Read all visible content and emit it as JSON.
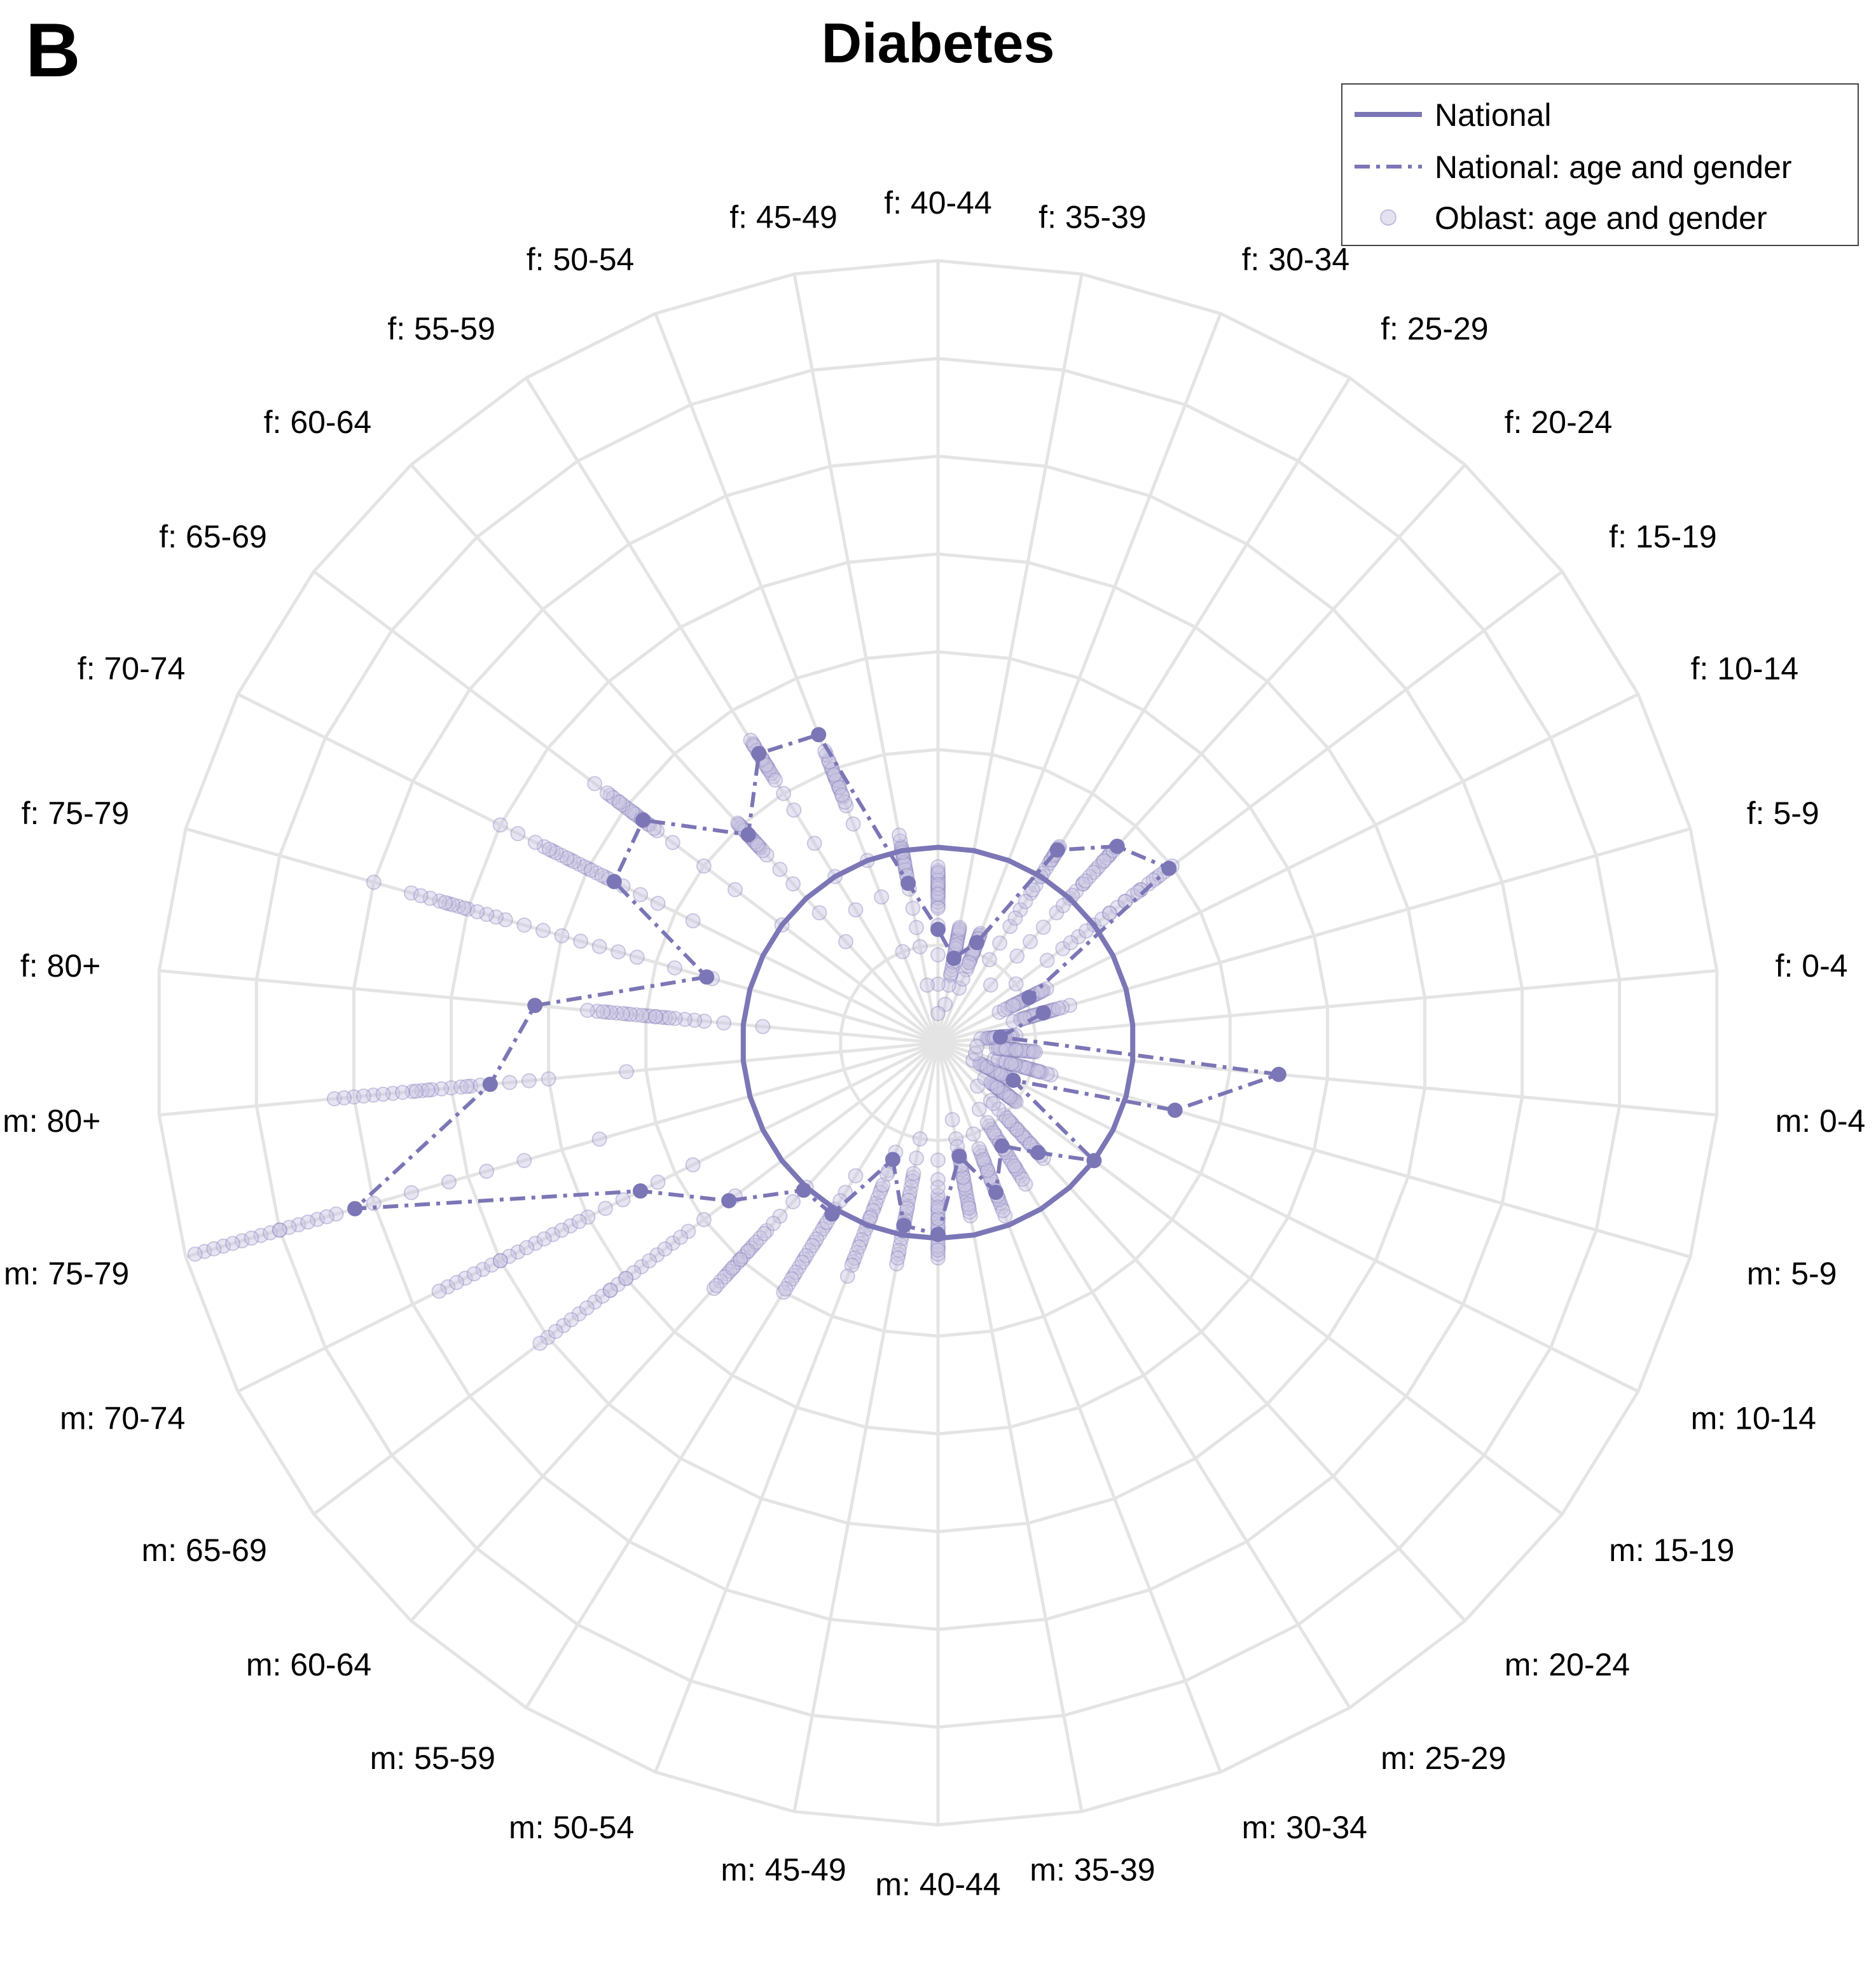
{
  "panel_letter": "B",
  "chart_data": {
    "type": "radar",
    "title": "Diabetes",
    "categories": [
      "f: 0-4",
      "f: 5-9",
      "f: 10-14",
      "f: 15-19",
      "f: 20-24",
      "f: 25-29",
      "f: 30-34",
      "f: 35-39",
      "f: 40-44",
      "f: 45-49",
      "f: 50-54",
      "f: 55-59",
      "f: 60-64",
      "f: 65-69",
      "f: 70-74",
      "f: 75-79",
      "f: 80+",
      "m: 80+",
      "m: 75-79",
      "m: 70-74",
      "m: 65-69",
      "m: 60-64",
      "m: 55-59",
      "m: 50-54",
      "m: 45-49",
      "m: 40-44",
      "m: 35-39",
      "m: 30-34",
      "m: 25-29",
      "m: 20-24",
      "m: 15-19",
      "m: 10-14",
      "m: 5-9",
      "m: 0-4"
    ],
    "rlim": [
      0,
      4
    ],
    "grid": true,
    "legend_position": "top-right",
    "colors": {
      "series": "#7b76b5",
      "grid": "#e4e4e4",
      "oblast_fill": "#c9c6e3"
    },
    "series": [
      {
        "name": "National",
        "style": "solid",
        "values": [
          1,
          1,
          1,
          1,
          1,
          1,
          1,
          1,
          1,
          1,
          1,
          1,
          1,
          1,
          1,
          1,
          1,
          1,
          1,
          1,
          1,
          1,
          1,
          1,
          1,
          1,
          1,
          1,
          1,
          1,
          1,
          1,
          1,
          1
        ]
      },
      {
        "name": "National: age and gender",
        "style": "dashdot",
        "values": [
          0.32,
          0.56,
          0.52,
          1.48,
          1.36,
          1.16,
          0.55,
          0.44,
          0.58,
          0.83,
          1.69,
          1.74,
          1.44,
          1.89,
          1.85,
          1.23,
          2.07,
          2.3,
          3.1,
          1.7,
          1.34,
          1.02,
          1.03,
          0.64,
          0.95,
          0.98,
          0.59,
          0.82,
          0.62,
          0.76,
          1.0,
          0.43,
          1.26,
          1.75
        ]
      }
    ],
    "oblast_points": {
      "name": "Oblast: age and gender",
      "values": [
        [
          0.3,
          0.28,
          0.36,
          0.25,
          0.4,
          0.32,
          0.22,
          0.38,
          0.34,
          0.3,
          0.27,
          0.33,
          0.29,
          0.35,
          0.31,
          0.26,
          0.37,
          0.3,
          0.32,
          0.28,
          0.34,
          0.3,
          0.33,
          0.29
        ],
        [
          0.45,
          0.6,
          0.55,
          0.4,
          0.7,
          0.5,
          0.48,
          0.58,
          0.52,
          0.62,
          0.44,
          0.57,
          0.5,
          0.66,
          0.54,
          0.47,
          0.59,
          0.53,
          0.49,
          0.61,
          0.56,
          0.51,
          0.64,
          0.46
        ],
        [
          0.35,
          0.55,
          0.5,
          0.45,
          0.62,
          0.48,
          0.4,
          0.58,
          0.52,
          0.56,
          0.42,
          0.6,
          0.47,
          0.53,
          0.44,
          0.57,
          0.5,
          0.38,
          0.54,
          0.49,
          0.51,
          0.46,
          0.59,
          0.43
        ],
        [
          0.5,
          0.9,
          1.2,
          1.5,
          1.45,
          1.1,
          1.3,
          0.8,
          1.0,
          1.35,
          1.25,
          1.4,
          0.95,
          1.15,
          1.05,
          1.3,
          1.42,
          0.7,
          1.2,
          1.1,
          1.38,
          1.48,
          0.85,
          1.28
        ],
        [
          0.4,
          0.9,
          1.1,
          1.3,
          1.36,
          1.2,
          1.0,
          0.8,
          1.25,
          1.15,
          1.3,
          1.05,
          0.95,
          1.35,
          1.22,
          0.7,
          1.18,
          1.28,
          1.1,
          1.33,
          0.6,
          1.12,
          1.26,
          1.02
        ],
        [
          0.5,
          0.8,
          1.0,
          1.1,
          1.18,
          1.15,
          0.9,
          1.05,
          1.12,
          0.7,
          0.95,
          1.16,
          1.08,
          1.14,
          0.85,
          1.1,
          1.17,
          1.0,
          0.6,
          1.13,
          0.75,
          1.02,
          1.16,
          0.92
        ],
        [
          0.3,
          0.45,
          0.5,
          0.55,
          0.6,
          0.52,
          0.48,
          0.58,
          0.4,
          0.56,
          0.5,
          0.53,
          0.35,
          0.57,
          0.46,
          0.54,
          0.5,
          0.59,
          0.42,
          0.55,
          0.51,
          0.49,
          0.57,
          0.44
        ],
        [
          0.2,
          0.35,
          0.45,
          0.55,
          0.6,
          0.4,
          0.5,
          0.58,
          0.48,
          0.3,
          0.52,
          0.56,
          0.44,
          0.5,
          0.38,
          0.54,
          0.57,
          0.46,
          0.42,
          0.53,
          0.59,
          0.49,
          0.36,
          0.51
        ],
        [
          0.15,
          0.3,
          0.45,
          0.6,
          0.7,
          0.8,
          0.85,
          0.82,
          0.75,
          0.78,
          0.88,
          0.84,
          0.72,
          0.86,
          0.8,
          0.9,
          0.83,
          0.77,
          0.74,
          0.87,
          0.79,
          0.81,
          0.69,
          0.76
        ],
        [
          0.3,
          0.5,
          0.6,
          0.7,
          0.8,
          0.9,
          0.95,
          0.85,
          1.0,
          1.05,
          0.92,
          0.98,
          1.02,
          0.88,
          0.96,
          1.0,
          0.94,
          1.08,
          0.9,
          0.97,
          1.01,
          0.93,
          0.99,
          0.87
        ],
        [
          0.5,
          0.8,
          1.0,
          1.2,
          1.3,
          1.4,
          1.45,
          1.5,
          1.55,
          1.48,
          1.52,
          1.38,
          1.35,
          1.42,
          1.58,
          1.46,
          1.5,
          1.32,
          1.44,
          1.54,
          1.4,
          1.47,
          1.36,
          1.6
        ],
        [
          0.8,
          1.0,
          1.2,
          1.4,
          1.5,
          1.6,
          1.65,
          1.7,
          1.75,
          1.8,
          1.72,
          1.68,
          1.78,
          1.62,
          1.74,
          1.66,
          1.82,
          1.7,
          1.76,
          1.64,
          1.71,
          1.58,
          1.79,
          1.67
        ],
        [
          0.7,
          0.9,
          1.1,
          1.2,
          1.3,
          1.35,
          1.4,
          1.45,
          1.5,
          1.42,
          1.48,
          1.38,
          1.52,
          1.44,
          1.36,
          1.46,
          1.41,
          1.49,
          1.33,
          1.47,
          1.39,
          1.43,
          1.37,
          1.51
        ],
        [
          1.0,
          1.3,
          1.5,
          1.7,
          1.8,
          1.85,
          1.9,
          1.95,
          2.0,
          2.05,
          2.1,
          1.92,
          1.88,
          1.98,
          2.02,
          1.86,
          1.94,
          2.08,
          1.82,
          1.96,
          2.12,
          1.9,
          2.04,
          2.2
        ],
        [
          1.4,
          1.6,
          1.7,
          1.8,
          1.85,
          1.9,
          2.0,
          2.05,
          2.1,
          2.15,
          2.2,
          2.25,
          1.95,
          2.02,
          1.88,
          2.08,
          2.12,
          2.18,
          1.98,
          2.3,
          2.4,
          1.92,
          2.22,
          2.5
        ],
        [
          1.2,
          1.4,
          1.6,
          1.7,
          1.8,
          1.9,
          2.0,
          2.1,
          2.2,
          2.3,
          2.35,
          2.4,
          2.5,
          2.55,
          2.6,
          2.45,
          2.65,
          2.7,
          2.8,
          3.0,
          2.52,
          2.58,
          2.62,
          2.75
        ],
        [
          0.9,
          1.1,
          1.2,
          1.25,
          1.3,
          1.35,
          1.4,
          1.45,
          1.5,
          1.55,
          1.6,
          1.65,
          1.7,
          1.75,
          1.8,
          1.42,
          1.48,
          1.52,
          1.58,
          1.38,
          1.62,
          1.68,
          1.45,
          1.72
        ],
        [
          1.6,
          2.0,
          2.1,
          2.2,
          2.3,
          2.4,
          2.5,
          2.55,
          2.6,
          2.65,
          2.7,
          2.8,
          2.9,
          3.0,
          3.1,
          2.45,
          2.35,
          2.75,
          2.85,
          2.95,
          3.05,
          2.62,
          2.68,
          2.42
        ],
        [
          1.8,
          2.2,
          2.4,
          2.6,
          2.8,
          3.0,
          3.1,
          3.2,
          3.3,
          3.4,
          3.5,
          3.6,
          3.7,
          3.8,
          3.9,
          3.45,
          3.55,
          3.65,
          3.75,
          3.85,
          3.25,
          3.35,
          3.95,
          3.5
        ],
        [
          1.4,
          1.6,
          1.7,
          1.8,
          1.9,
          2.0,
          2.1,
          2.2,
          2.3,
          2.4,
          2.5,
          2.6,
          2.7,
          2.8,
          2.45,
          2.55,
          2.65,
          2.75,
          2.35,
          2.25,
          2.15,
          2.05,
          2.85,
          2.5
        ],
        [
          1.3,
          1.5,
          1.6,
          1.7,
          1.8,
          1.9,
          2.0,
          2.1,
          2.2,
          2.3,
          2.4,
          2.5,
          1.95,
          2.05,
          2.15,
          2.25,
          2.35,
          1.85,
          1.75,
          2.45,
          1.65,
          2.55,
          2.0,
          2.1
        ],
        [
          1.0,
          1.1,
          1.2,
          1.3,
          1.4,
          1.5,
          1.55,
          1.6,
          1.65,
          1.7,
          1.45,
          1.35,
          1.25,
          1.52,
          1.58,
          1.62,
          1.48,
          1.42,
          1.38,
          1.68,
          1.32,
          1.56,
          1.44,
          1.5
        ],
        [
          0.8,
          0.9,
          1.0,
          1.05,
          1.1,
          1.15,
          1.2,
          1.25,
          1.3,
          1.35,
          1.4,
          1.45,
          1.5,
          1.12,
          1.18,
          1.22,
          1.28,
          1.08,
          1.02,
          1.32,
          0.95,
          1.38,
          1.42,
          1.48
        ],
        [
          0.6,
          0.7,
          0.8,
          0.85,
          0.9,
          0.95,
          1.0,
          1.05,
          1.1,
          1.15,
          1.2,
          0.88,
          0.92,
          0.98,
          1.02,
          1.08,
          1.12,
          0.82,
          0.78,
          1.18,
          0.72,
          1.22,
          0.96,
          1.28
        ],
        [
          0.5,
          0.6,
          0.7,
          0.75,
          0.8,
          0.85,
          0.9,
          0.95,
          1.0,
          1.05,
          1.1,
          1.15,
          0.78,
          0.82,
          0.88,
          0.92,
          0.98,
          1.02,
          0.72,
          1.08,
          0.68,
          1.12,
          0.86,
          0.94
        ],
        [
          0.6,
          0.7,
          0.8,
          0.85,
          0.9,
          0.95,
          1.0,
          1.05,
          1.1,
          0.92,
          0.88,
          0.98,
          1.02,
          0.82,
          0.78,
          1.08,
          0.96,
          0.74,
          0.86,
          1.04,
          0.94,
          0.9,
          1.06,
          0.84
        ],
        [
          0.4,
          0.5,
          0.6,
          0.65,
          0.7,
          0.75,
          0.8,
          0.85,
          0.9,
          0.68,
          0.72,
          0.78,
          0.82,
          0.62,
          0.58,
          0.88,
          0.76,
          0.54,
          0.66,
          0.84,
          0.74,
          0.7,
          0.86,
          0.64
        ],
        [
          0.5,
          0.6,
          0.65,
          0.7,
          0.75,
          0.8,
          0.85,
          0.9,
          0.95,
          0.72,
          0.78,
          0.82,
          0.88,
          0.68,
          0.62,
          0.92,
          0.76,
          0.58,
          0.66,
          0.86,
          0.74,
          0.7,
          0.84,
          0.64
        ],
        [
          0.4,
          0.5,
          0.55,
          0.6,
          0.65,
          0.7,
          0.75,
          0.8,
          0.85,
          0.62,
          0.68,
          0.72,
          0.78,
          0.58,
          0.52,
          0.82,
          0.66,
          0.48,
          0.56,
          0.76,
          0.64,
          0.6,
          0.74,
          0.54
        ],
        [
          0.3,
          0.4,
          0.5,
          0.55,
          0.6,
          0.65,
          0.7,
          0.75,
          0.8,
          0.62,
          0.68,
          0.72,
          0.58,
          0.52,
          0.46,
          0.78,
          0.66,
          0.42,
          0.56,
          0.74,
          0.64,
          0.6,
          0.7,
          0.54
        ],
        [
          0.3,
          0.35,
          0.4,
          0.45,
          0.5,
          0.42,
          0.38,
          0.48,
          0.44,
          0.36,
          0.46,
          0.41,
          0.39,
          0.47,
          0.43,
          0.37,
          0.49,
          0.4,
          0.45,
          0.34,
          0.44,
          0.42,
          0.46,
          0.38
        ],
        [
          0.2,
          0.25,
          0.3,
          0.35,
          0.4,
          0.32,
          0.28,
          0.38,
          0.34,
          0.26,
          0.36,
          0.31,
          0.29,
          0.37,
          0.33,
          0.27,
          0.39,
          0.3,
          0.35,
          0.24,
          0.34,
          0.32,
          0.36,
          0.28
        ],
        [
          0.2,
          0.3,
          0.4,
          0.5,
          0.6,
          0.45,
          0.35,
          0.55,
          0.5,
          0.4,
          0.48,
          0.42,
          0.38,
          0.52,
          0.46,
          0.32,
          0.58,
          0.44,
          0.36,
          0.54,
          0.47,
          0.41,
          0.53,
          0.39
        ],
        [
          0.2,
          0.3,
          0.35,
          0.4,
          0.5,
          0.38,
          0.33,
          0.45,
          0.42,
          0.36,
          0.48,
          0.31,
          0.39,
          0.44,
          0.37,
          0.34,
          0.47,
          0.41,
          0.32,
          0.46,
          0.43,
          0.35,
          0.49,
          0.4
        ]
      ]
    },
    "legend": {
      "national": "National",
      "national_age_gender": "National: age and gender",
      "oblast": "Oblast: age and gender"
    }
  }
}
